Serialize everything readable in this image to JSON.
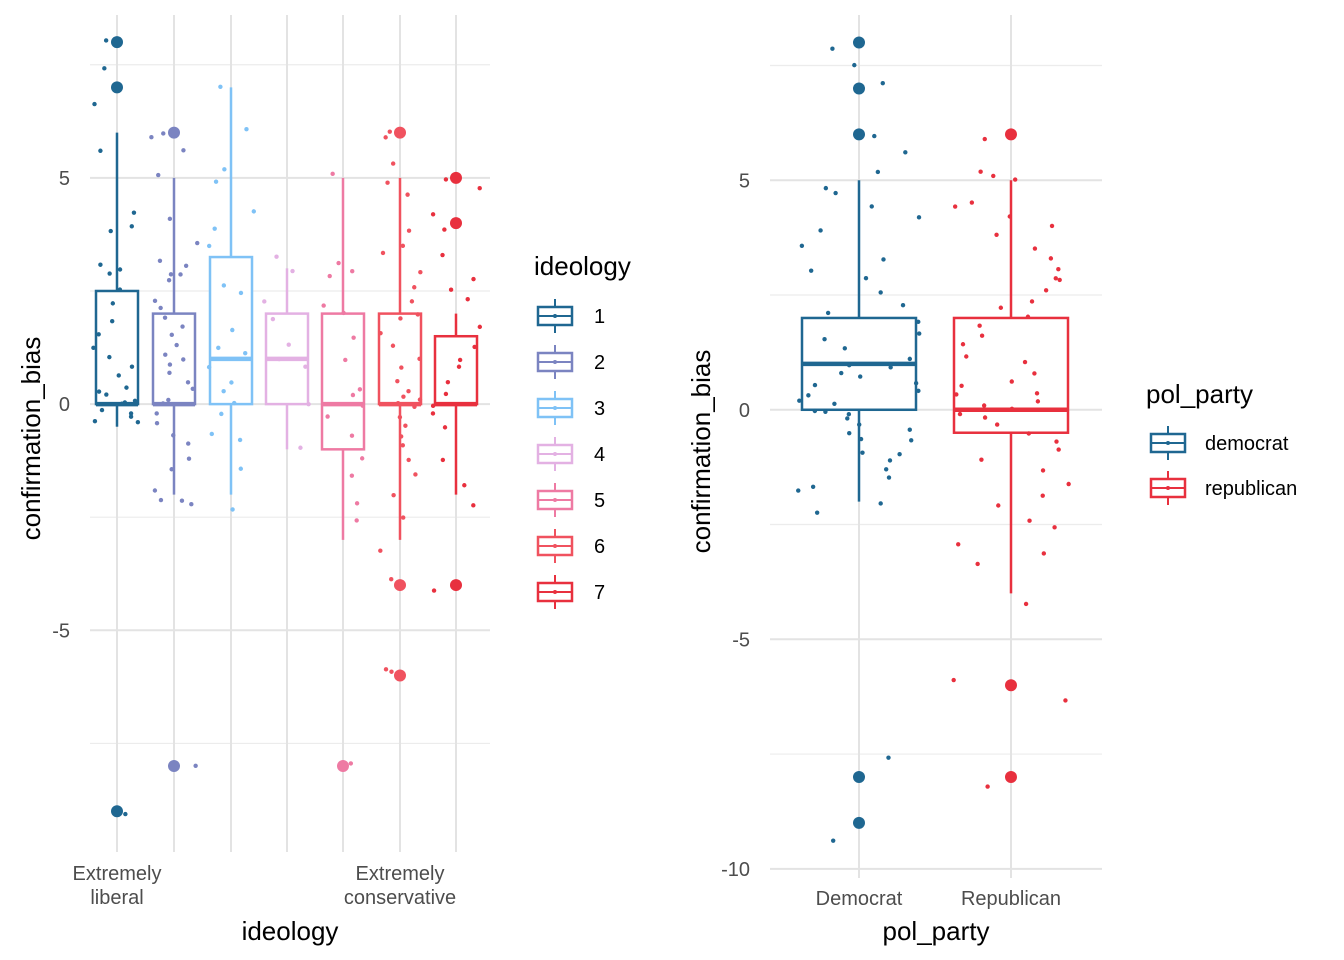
{
  "chart_data": [
    {
      "type": "boxplot",
      "xlabel": "ideology",
      "ylabel": "confirmation_bias",
      "ylim": [
        -9.9,
        8.6
      ],
      "yticks": [
        -5,
        0,
        5
      ],
      "categories": [
        "1",
        "2",
        "3",
        "4",
        "5",
        "6",
        "7"
      ],
      "category_tick_labels": [
        "Extremely\nliberal",
        "",
        "",
        "",
        "",
        "Extremely\nconservative",
        ""
      ],
      "legend": {
        "title": "ideology",
        "position": "right",
        "entries": [
          "1",
          "2",
          "3",
          "4",
          "5",
          "6",
          "7"
        ]
      },
      "colors": [
        "#1f6791",
        "#7b84c1",
        "#7fc2f6",
        "#e3b1e3",
        "#ee7aa3",
        "#f0525f",
        "#e8303e"
      ],
      "boxes": [
        {
          "category": "1",
          "q1": 0,
          "median": 0,
          "q3": 2.5,
          "whisker_low": -0.5,
          "whisker_high": 6
        },
        {
          "category": "2",
          "q1": 0,
          "median": 0,
          "q3": 2,
          "whisker_low": -2,
          "whisker_high": 5
        },
        {
          "category": "3",
          "q1": 0,
          "median": 1,
          "q3": 3.25,
          "whisker_low": -2,
          "whisker_high": 7
        },
        {
          "category": "4",
          "q1": 0,
          "median": 1,
          "q3": 2,
          "whisker_low": -1,
          "whisker_high": 3
        },
        {
          "category": "5",
          "q1": -1,
          "median": 0,
          "q3": 2,
          "whisker_low": -3,
          "whisker_high": 5
        },
        {
          "category": "6",
          "q1": 0,
          "median": 0,
          "q3": 2,
          "whisker_low": -3,
          "whisker_high": 5
        },
        {
          "category": "7",
          "q1": 0,
          "median": 0,
          "q3": 1.5,
          "whisker_low": -2,
          "whisker_high": 2
        }
      ],
      "outliers": [
        {
          "category": "1",
          "values": [
            8,
            7,
            -9
          ]
        },
        {
          "category": "2",
          "values": [
            6,
            -8
          ]
        },
        {
          "category": "5",
          "values": [
            -8
          ]
        },
        {
          "category": "6",
          "values": [
            6,
            -4,
            -6
          ]
        },
        {
          "category": "7",
          "values": [
            5,
            4,
            -4
          ]
        }
      ],
      "jitter_points": [
        {
          "category": "1",
          "values": [
            8,
            7.4,
            6.6,
            5.6,
            4.2,
            3.9,
            3.8,
            3.1,
            3,
            2.9,
            2.5,
            2.2,
            1.8,
            1.5,
            1.2,
            1,
            0.8,
            0.6,
            0.4,
            0.3,
            0.2,
            0.1,
            0,
            0,
            -0.1,
            -0.2,
            -0.3,
            -0.4,
            -0.4,
            -9.1
          ]
        },
        {
          "category": "2",
          "values": [
            6,
            5.9,
            5.6,
            5.1,
            4.1,
            3.6,
            3.2,
            3.1,
            2.9,
            2.9,
            2.7,
            2.3,
            2.1,
            1.9,
            1.7,
            1.5,
            1.3,
            1.1,
            1,
            0.9,
            0.7,
            0.5,
            0.3,
            0.1,
            0,
            -0.2,
            -0.4,
            -0.7,
            -0.9,
            -1.2,
            -1.4,
            -1.9,
            -2.1,
            -2.2,
            -2.1,
            -8
          ]
        },
        {
          "category": "3",
          "values": [
            7,
            6.1,
            5.2,
            4.9,
            4.3,
            3.9,
            3.5,
            2.6,
            2.5,
            1.6,
            1.2,
            1.1,
            0.8,
            0.5,
            0.3,
            0,
            -0.2,
            -0.7,
            -0.8,
            -1.4,
            -2.3
          ]
        },
        {
          "category": "4",
          "values": [
            3.3,
            2.9,
            2.3,
            1.9,
            1.3,
            1,
            0.8,
            0,
            -1
          ]
        },
        {
          "category": "5",
          "values": [
            5.1,
            3.1,
            2.9,
            2.8,
            2.2,
            2,
            1.5,
            1,
            0.3,
            0.2,
            0,
            -0.3,
            -0.7,
            -1.2,
            -1.6,
            -2.2,
            -2.6,
            -7.9
          ]
        },
        {
          "category": "6",
          "values": [
            6,
            5.9,
            5.3,
            4.9,
            4.6,
            3.8,
            3.5,
            3.3,
            2.9,
            2.6,
            2.3,
            2,
            1.9,
            1.6,
            1.3,
            1,
            0.8,
            0.5,
            0.3,
            0.2,
            0.1,
            0,
            -0.1,
            -0.3,
            -0.5,
            -0.7,
            -0.9,
            -1.2,
            -1.6,
            -2,
            -2.5,
            -3.2,
            -3.9,
            -5.9,
            -5.9
          ]
        },
        {
          "category": "7",
          "values": [
            5,
            4.8,
            4.2,
            3.9,
            3.3,
            2.8,
            2.5,
            2.3,
            1.7,
            1.3,
            1,
            0.8,
            0.5,
            0.2,
            0,
            -0.2,
            -0.5,
            -1.2,
            -1.8,
            -2.2,
            -4.1
          ]
        }
      ]
    },
    {
      "type": "boxplot",
      "xlabel": "pol_party",
      "ylabel": "confirmation_bias",
      "ylim": [
        -10.2,
        8.6
      ],
      "yticks": [
        -10,
        -5,
        0,
        5
      ],
      "categories": [
        "Democrat",
        "Republican"
      ],
      "legend": {
        "title": "pol_party",
        "position": "right",
        "entries": [
          "democrat",
          "republican"
        ]
      },
      "colors": [
        "#1f6791",
        "#e8303e"
      ],
      "boxes": [
        {
          "category": "Democrat",
          "q1": 0,
          "median": 1,
          "q3": 2,
          "whisker_low": -2,
          "whisker_high": 5
        },
        {
          "category": "Republican",
          "q1": -0.5,
          "median": 0,
          "q3": 2,
          "whisker_low": -4,
          "whisker_high": 5
        }
      ],
      "outliers": [
        {
          "category": "Democrat",
          "values": [
            8,
            7,
            6,
            -8,
            -9
          ]
        },
        {
          "category": "Republican",
          "values": [
            6,
            -6,
            -8
          ]
        }
      ],
      "jitter_points": [
        {
          "category": "Democrat",
          "values": [
            7.9,
            7.5,
            7.1,
            7,
            6,
            5.6,
            5.2,
            4.8,
            4.7,
            4.4,
            4.2,
            3.9,
            3.6,
            3.3,
            3,
            2.9,
            2.6,
            2.3,
            2.1,
            1.9,
            1.7,
            1.5,
            1.3,
            1.1,
            1,
            0.9,
            0.8,
            0.7,
            0.6,
            0.5,
            0.4,
            0.3,
            0.2,
            0.1,
            0,
            0,
            -0.1,
            -0.2,
            -0.3,
            -0.4,
            -0.5,
            -0.6,
            -0.7,
            -0.9,
            -1,
            -1.1,
            -1.3,
            -1.5,
            -1.7,
            -1.8,
            -2,
            -2.2,
            -7.6,
            -9.4
          ]
        },
        {
          "category": "Republican",
          "values": [
            5.9,
            5.2,
            5.1,
            5,
            4.5,
            4.4,
            4.2,
            4,
            3.8,
            3.5,
            3.3,
            3.1,
            2.9,
            2.8,
            2.6,
            2.4,
            2.2,
            2,
            1.8,
            1.6,
            1.4,
            1.2,
            1,
            0.8,
            0.6,
            0.5,
            0.4,
            0.3,
            0.2,
            0.1,
            0,
            -0.1,
            -0.2,
            -0.3,
            -0.5,
            -0.7,
            -0.9,
            -1.1,
            -1.3,
            -1.6,
            -1.9,
            -2.1,
            -2.4,
            -2.6,
            -2.9,
            -3.1,
            -3.4,
            -4.2,
            -5.9,
            -6.3,
            -8.2
          ]
        }
      ]
    }
  ]
}
